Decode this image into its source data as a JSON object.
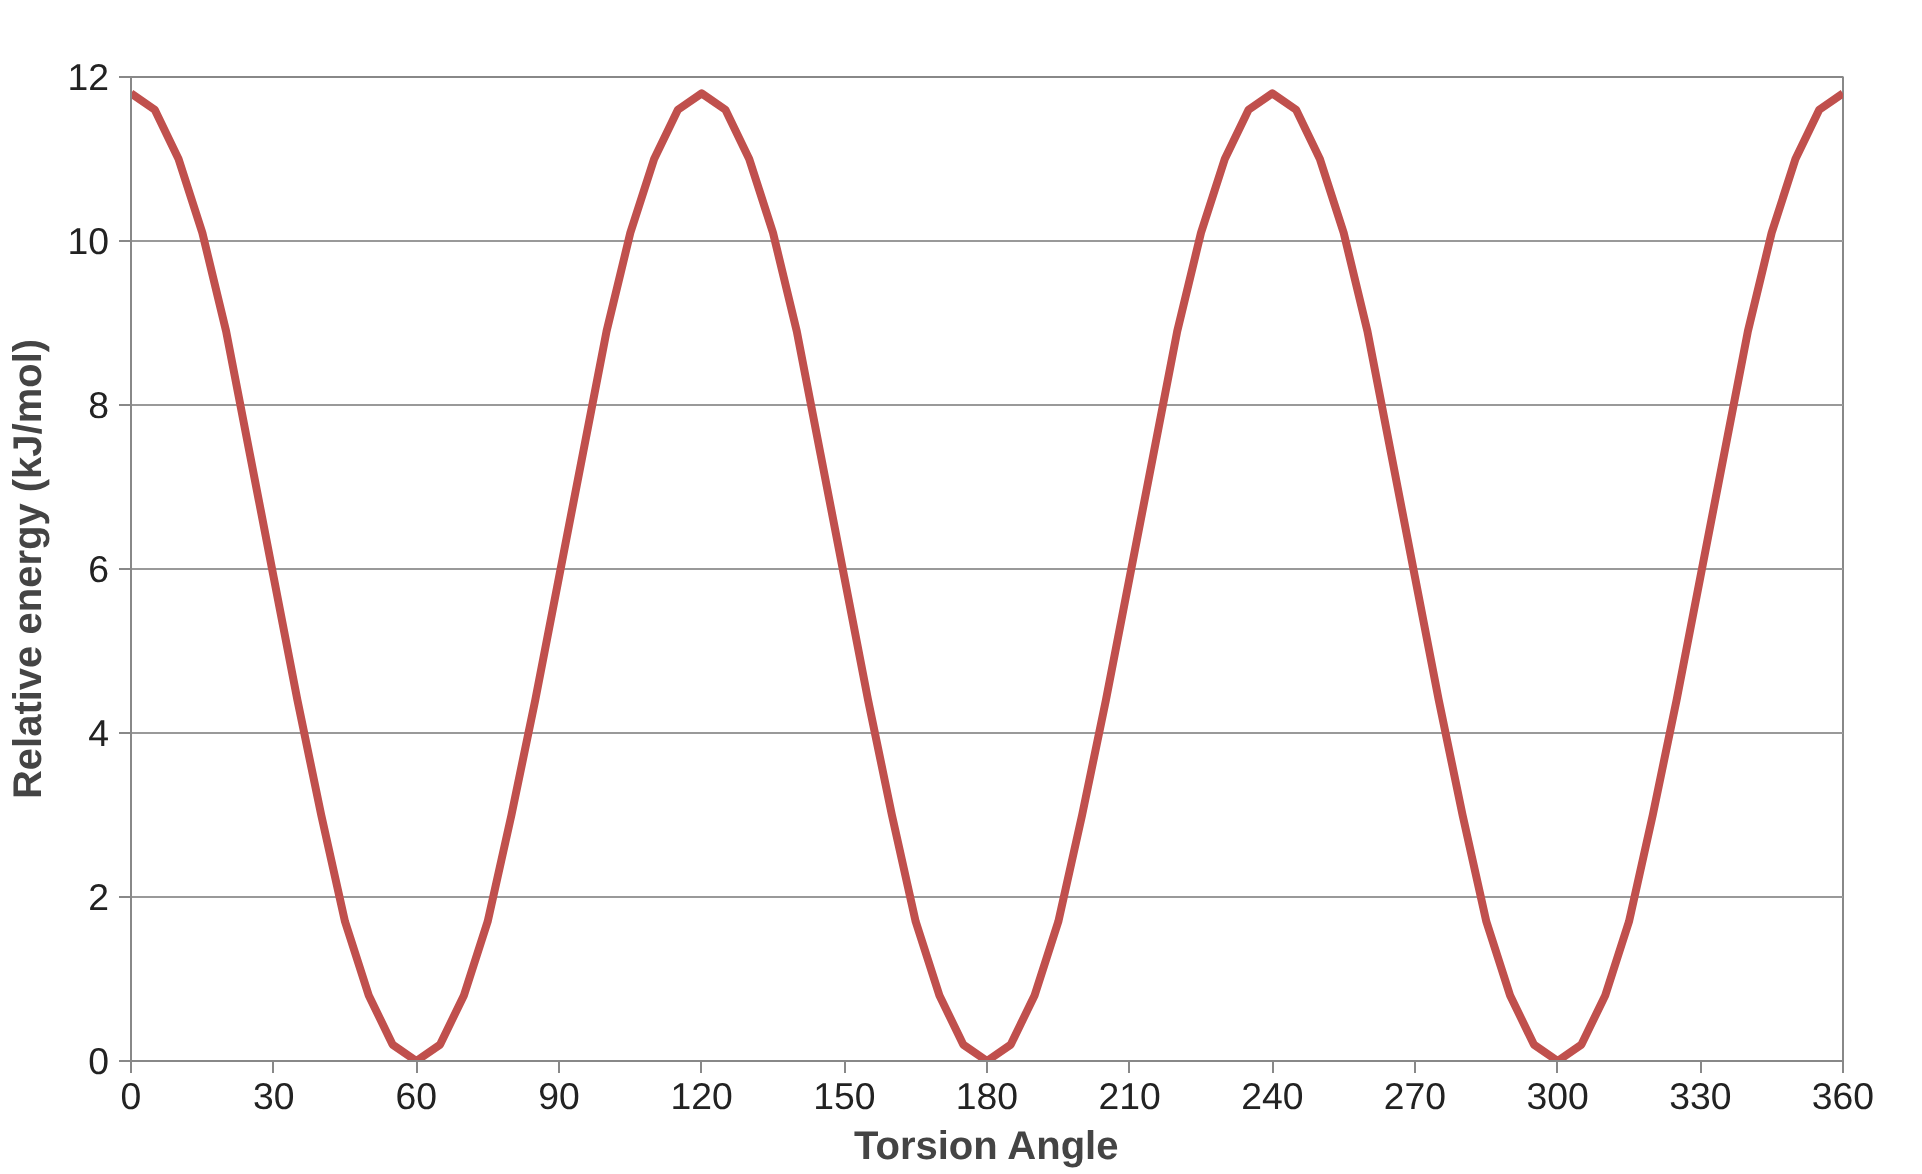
{
  "chart_data": {
    "type": "line",
    "xlabel": "Torsion Angle",
    "ylabel": "Relative energy (kJ/mol)",
    "x": [
      0,
      5,
      10,
      15,
      20,
      25,
      30,
      35,
      40,
      45,
      50,
      55,
      60,
      65,
      70,
      75,
      80,
      85,
      90,
      95,
      100,
      105,
      110,
      115,
      120,
      125,
      130,
      135,
      140,
      145,
      150,
      155,
      160,
      165,
      170,
      175,
      180,
      185,
      190,
      195,
      200,
      205,
      210,
      215,
      220,
      225,
      230,
      235,
      240,
      245,
      250,
      255,
      260,
      265,
      270,
      275,
      280,
      285,
      290,
      295,
      300,
      305,
      310,
      315,
      320,
      325,
      330,
      335,
      340,
      345,
      350,
      355,
      360
    ],
    "series": [
      {
        "color": "#c0504d",
        "values": [
          11.8,
          11.6,
          11.0,
          10.1,
          8.9,
          7.4,
          5.9,
          4.4,
          3.0,
          1.7,
          0.8,
          0.2,
          0.0,
          0.2,
          0.8,
          1.7,
          3.0,
          4.4,
          5.9,
          7.4,
          8.9,
          10.1,
          11.0,
          11.6,
          11.8,
          11.6,
          11.0,
          10.1,
          8.9,
          7.4,
          5.9,
          4.4,
          3.0,
          1.7,
          0.8,
          0.2,
          0.0,
          0.2,
          0.8,
          1.7,
          3.0,
          4.4,
          5.9,
          7.4,
          8.9,
          10.1,
          11.0,
          11.6,
          11.8,
          11.6,
          11.0,
          10.1,
          8.9,
          7.4,
          5.9,
          4.4,
          3.0,
          1.7,
          0.8,
          0.2,
          0.0,
          0.2,
          0.8,
          1.7,
          3.0,
          4.4,
          5.9,
          7.4,
          8.9,
          10.1,
          11.0,
          11.6,
          11.8
        ]
      }
    ],
    "xlim": [
      0,
      360
    ],
    "xticks": [
      0,
      30,
      60,
      90,
      120,
      150,
      180,
      210,
      240,
      270,
      300,
      330,
      360
    ],
    "ylim": [
      0,
      12
    ],
    "yticks": [
      0,
      2,
      4,
      6,
      8,
      10,
      12
    ],
    "grid": "y",
    "marker": "none",
    "line_style": "solid"
  }
}
